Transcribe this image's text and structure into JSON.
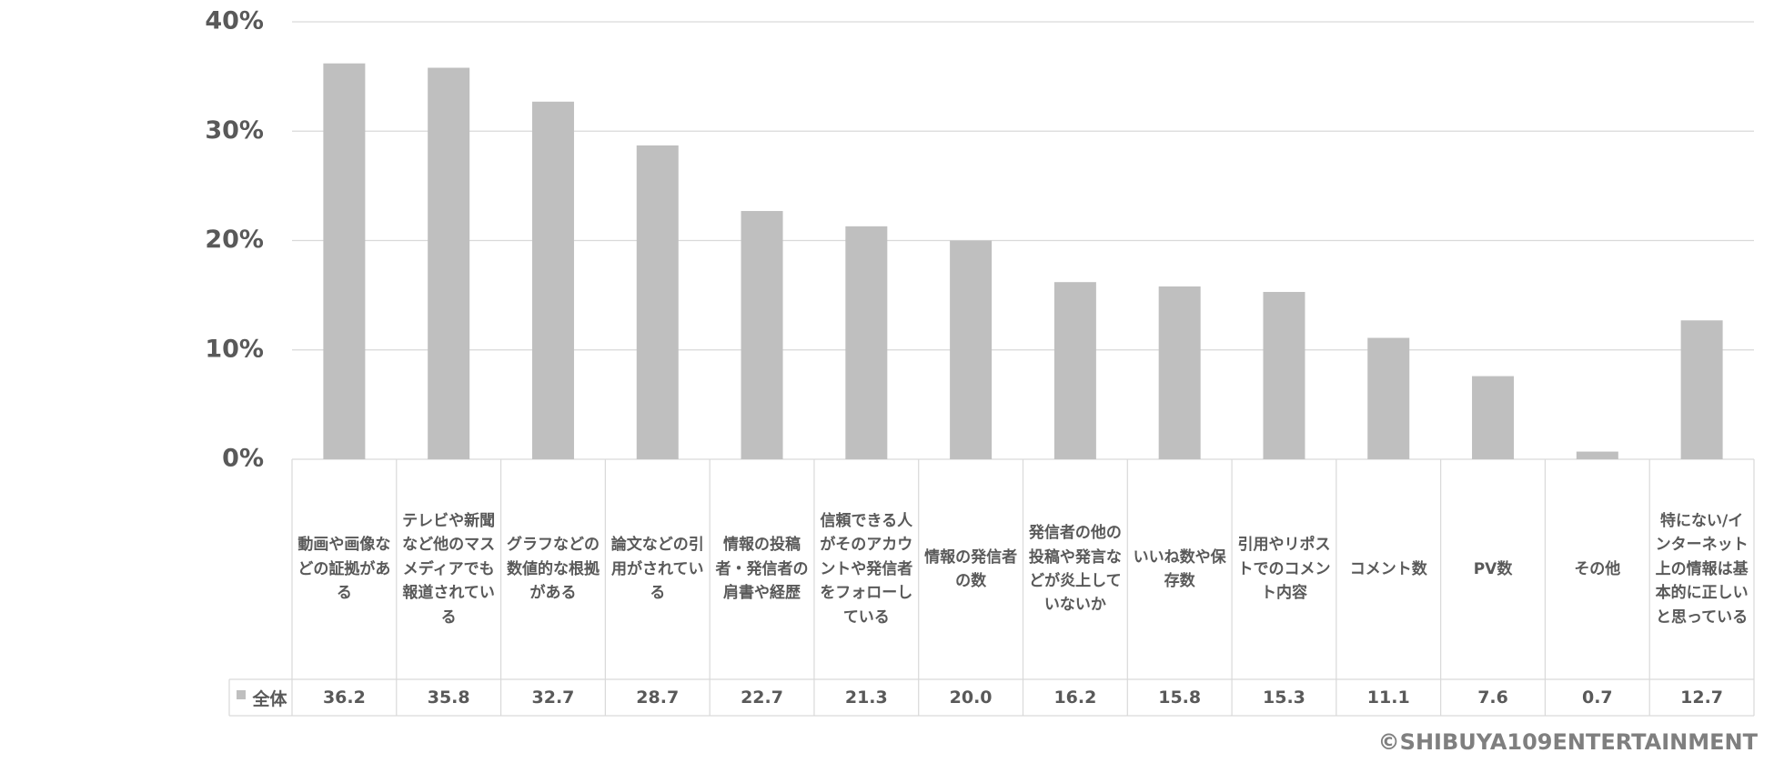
{
  "chart_data": {
    "type": "bar",
    "categories": [
      "動画や画像などの証拠がある",
      "テレビや新聞など他のマスメディアでも報道されている",
      "グラフなどの数値的な根拠がある",
      "論文などの引用がされている",
      "情報の投稿者・発信者の肩書や経歴",
      "信頼できる人がそのアカウントや発信者をフォローしている",
      "情報の発信者の数",
      "発信者の他の投稿や発言などが炎上していないか",
      "いいね数や保存数",
      "引用やリポストでのコメント内容",
      "コメント数",
      "PV数",
      "その他",
      "特にない/インターネット上の情報は基本的に正しいと思っている"
    ],
    "series": [
      {
        "name": "全体",
        "color": "#bfbfbf",
        "values": [
          36.2,
          35.8,
          32.7,
          28.7,
          22.7,
          21.3,
          20.0,
          16.2,
          15.8,
          15.3,
          11.1,
          7.6,
          0.7,
          12.7
        ],
        "value_labels": [
          "36.2",
          "35.8",
          "32.7",
          "28.7",
          "22.7",
          "21.3",
          "20.0",
          "16.2",
          "15.8",
          "15.3",
          "11.1",
          "7.6",
          "0.7",
          "12.7"
        ]
      }
    ],
    "ylim": [
      0,
      40
    ],
    "yticks": [
      {
        "value": 0,
        "label": "0%"
      },
      {
        "value": 10,
        "label": "10%"
      },
      {
        "value": 20,
        "label": "20%"
      },
      {
        "value": 30,
        "label": "30%"
      },
      {
        "value": 40,
        "label": "40%"
      }
    ],
    "grid": true,
    "credit": "©SHIBUYA109ENTERTAINMENT"
  }
}
